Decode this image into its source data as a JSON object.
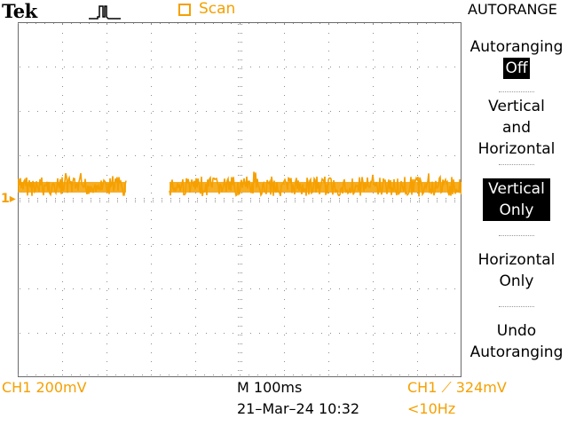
{
  "header": {
    "brand": "Tek",
    "acq_mode_icon": "single-pulse-icon",
    "scan_label": "Scan",
    "menu_title": "AUTORANGE"
  },
  "side_menu": {
    "autoranging_label": "Autoranging",
    "autoranging_value": "Off",
    "item2_line1": "Vertical",
    "item2_line2": "and",
    "item2_line3": "Horizontal",
    "item3_line1": "Vertical",
    "item3_line2": "Only",
    "item4_line1": "Horizontal",
    "item4_line2": "Only",
    "item5_line1": "Undo",
    "item5_line2": "Autoranging"
  },
  "channel_marker": "1",
  "status": {
    "ch1_scale": "CH1  200mV",
    "timebase": "M 100ms",
    "datetime": "21–Mar–24 10:32",
    "trigger": "CH1 ⟋ 324mV",
    "trigger_freq": "<10Hz"
  },
  "colors": {
    "trace": "#f5a000",
    "background": "#ffffff",
    "text": "#000000"
  }
}
